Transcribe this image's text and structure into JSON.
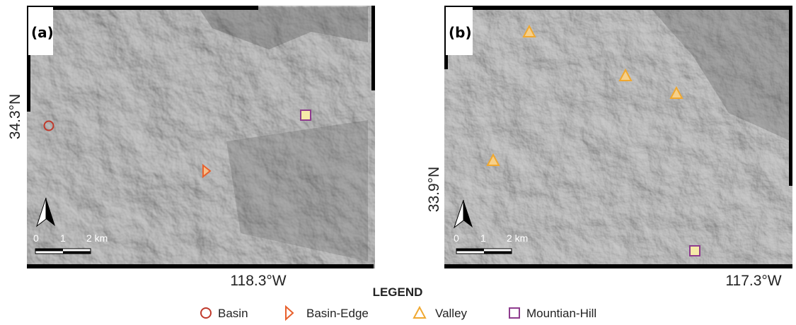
{
  "panels": [
    {
      "label": "(a)",
      "lat_label": "34.3°N",
      "lon_label": "118.3°W",
      "scale_labels": [
        "0",
        "1",
        "2 km"
      ]
    },
    {
      "label": "(b)",
      "lat_label": "33.9°N",
      "lon_label": "117.3°W",
      "scale_labels": [
        "0",
        "1",
        "2 km"
      ]
    }
  ],
  "legend": {
    "title": "LEGEND",
    "items": [
      "Basin",
      "Basin-Edge",
      "Valley",
      "Mountian-Hill"
    ]
  }
}
